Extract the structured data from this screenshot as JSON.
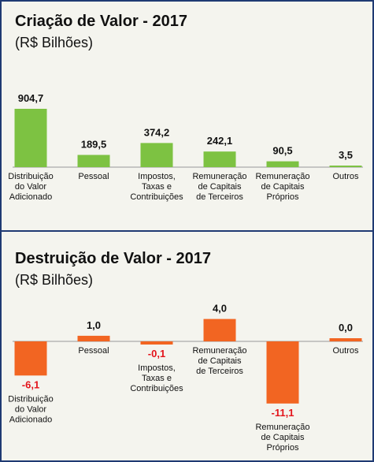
{
  "chart_data": [
    {
      "type": "bar",
      "title": "Criação de Valor - 2017",
      "subtitle": "(R$ Bilhões)",
      "color": "#7dc242",
      "categories": [
        [
          "Distribuição",
          "do Valor",
          "Adicionado"
        ],
        [
          "Pessoal"
        ],
        [
          "Impostos,",
          "Taxas e",
          "Contribuições"
        ],
        [
          "Remuneração",
          "de Capitais",
          "de Terceiros"
        ],
        [
          "Remuneração",
          "de Capitais",
          "Próprios"
        ],
        [
          "Outros"
        ]
      ],
      "values": [
        904.7,
        189.5,
        374.2,
        242.1,
        90.5,
        3.5
      ],
      "value_labels": [
        "904,7",
        "189,5",
        "374,2",
        "242,1",
        "90,5",
        "3,5"
      ],
      "ylim": [
        0,
        904.7
      ]
    },
    {
      "type": "bar",
      "title": "Destruição de Valor - 2017",
      "subtitle": "(R$ Bilhões)",
      "color": "#f26522",
      "negative_label_color": "#e3141b",
      "categories": [
        [
          "Distribuição",
          "do Valor",
          "Adicionado"
        ],
        [
          "Pessoal"
        ],
        [
          "Impostos,",
          "Taxas e",
          "Contribuições"
        ],
        [
          "Remuneração",
          "de Capitais",
          "de Terceiros"
        ],
        [
          "Remuneração",
          "de Capitais",
          "Próprios"
        ],
        [
          "Outros"
        ]
      ],
      "values": [
        -6.1,
        1.0,
        -0.1,
        4.0,
        -11.1,
        0.0
      ],
      "value_labels": [
        "-6,1",
        "1,0",
        "-0,1",
        "4,0",
        "-11,1",
        "0,0"
      ],
      "ylim": [
        -11.1,
        4.0
      ]
    }
  ]
}
